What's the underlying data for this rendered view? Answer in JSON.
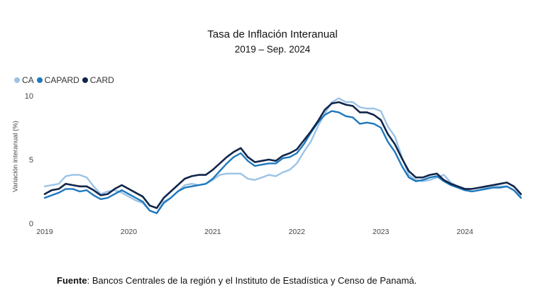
{
  "chart_data": {
    "type": "line",
    "title": "Tasa de Inflación Interanual",
    "subtitle": "2019 – Sep. 2024",
    "ylabel": "Variación interanual (%)",
    "xlabel": "",
    "ylim": [
      0,
      10
    ],
    "yticks": [
      0,
      5,
      10
    ],
    "xlim": [
      2019.0,
      2024.7
    ],
    "xticks": [
      "2019",
      "2020",
      "2021",
      "2022",
      "2023",
      "2024"
    ],
    "legend_position": "top-left",
    "grid": false,
    "x": [
      2019.0,
      2019.083,
      2019.167,
      2019.25,
      2019.333,
      2019.417,
      2019.5,
      2019.583,
      2019.667,
      2019.75,
      2019.833,
      2019.917,
      2020.0,
      2020.083,
      2020.167,
      2020.25,
      2020.333,
      2020.417,
      2020.5,
      2020.583,
      2020.667,
      2020.75,
      2020.833,
      2020.917,
      2021.0,
      2021.083,
      2021.167,
      2021.25,
      2021.333,
      2021.417,
      2021.5,
      2021.583,
      2021.667,
      2021.75,
      2021.833,
      2021.917,
      2022.0,
      2022.083,
      2022.167,
      2022.25,
      2022.333,
      2022.417,
      2022.5,
      2022.583,
      2022.667,
      2022.75,
      2022.833,
      2022.917,
      2023.0,
      2023.083,
      2023.167,
      2023.25,
      2023.333,
      2023.417,
      2023.5,
      2023.583,
      2023.667,
      2023.75,
      2023.833,
      2023.917,
      2024.0,
      2024.083,
      2024.167,
      2024.25,
      2024.333,
      2024.417,
      2024.5,
      2024.583,
      2024.667
    ],
    "series": [
      {
        "name": "CA",
        "color": "#9cc3e6",
        "values": [
          2.9,
          3.0,
          3.1,
          3.7,
          3.8,
          3.8,
          3.6,
          2.9,
          2.3,
          2.5,
          2.6,
          2.4,
          2.1,
          1.8,
          1.6,
          1.0,
          0.8,
          1.7,
          2.0,
          2.5,
          3.0,
          3.1,
          3.0,
          3.1,
          3.4,
          3.8,
          3.9,
          3.9,
          3.9,
          3.5,
          3.4,
          3.6,
          3.8,
          3.7,
          4.0,
          4.2,
          4.7,
          5.6,
          6.4,
          7.6,
          8.6,
          9.5,
          9.8,
          9.5,
          9.5,
          9.1,
          9.0,
          9.0,
          8.8,
          7.6,
          6.8,
          5.2,
          3.8,
          3.4,
          3.3,
          3.4,
          3.6,
          3.8,
          3.2,
          2.9,
          2.7,
          2.5,
          2.6,
          2.8,
          2.9,
          2.9,
          2.9,
          2.6,
          2.2
        ]
      },
      {
        "name": "CAPARD",
        "color": "#1e78bd",
        "values": [
          2.0,
          2.2,
          2.4,
          2.7,
          2.7,
          2.5,
          2.6,
          2.2,
          1.9,
          2.0,
          2.3,
          2.6,
          2.3,
          2.0,
          1.7,
          1.0,
          0.8,
          1.6,
          2.0,
          2.5,
          2.8,
          2.9,
          3.0,
          3.1,
          3.5,
          4.1,
          4.7,
          5.2,
          5.5,
          4.9,
          4.5,
          4.6,
          4.7,
          4.7,
          5.1,
          5.2,
          5.5,
          6.2,
          7.1,
          7.9,
          8.5,
          8.8,
          8.7,
          8.4,
          8.3,
          7.8,
          7.9,
          7.8,
          7.5,
          6.4,
          5.6,
          4.5,
          3.6,
          3.3,
          3.4,
          3.6,
          3.7,
          3.3,
          3.0,
          2.8,
          2.6,
          2.5,
          2.6,
          2.7,
          2.8,
          2.8,
          2.9,
          2.6,
          2.0
        ]
      },
      {
        "name": "CARD",
        "color": "#12264a",
        "values": [
          2.3,
          2.6,
          2.7,
          3.1,
          3.0,
          2.9,
          2.9,
          2.6,
          2.2,
          2.3,
          2.7,
          3.0,
          2.7,
          2.4,
          2.1,
          1.4,
          1.2,
          2.0,
          2.5,
          3.0,
          3.5,
          3.7,
          3.8,
          3.8,
          4.2,
          4.7,
          5.2,
          5.6,
          5.9,
          5.2,
          4.8,
          4.9,
          5.0,
          4.9,
          5.3,
          5.5,
          5.8,
          6.5,
          7.2,
          8.0,
          8.9,
          9.4,
          9.5,
          9.3,
          9.2,
          8.7,
          8.7,
          8.5,
          8.1,
          7.0,
          6.2,
          5.1,
          4.1,
          3.6,
          3.6,
          3.8,
          3.9,
          3.4,
          3.1,
          2.9,
          2.7,
          2.7,
          2.8,
          2.9,
          3.0,
          3.1,
          3.2,
          2.9,
          2.3
        ]
      }
    ]
  },
  "footer": {
    "source_label": "Fuente",
    "source_text": ": Bancos Centrales de la región y el Instituto de Estadística y Censo de Panamá."
  }
}
